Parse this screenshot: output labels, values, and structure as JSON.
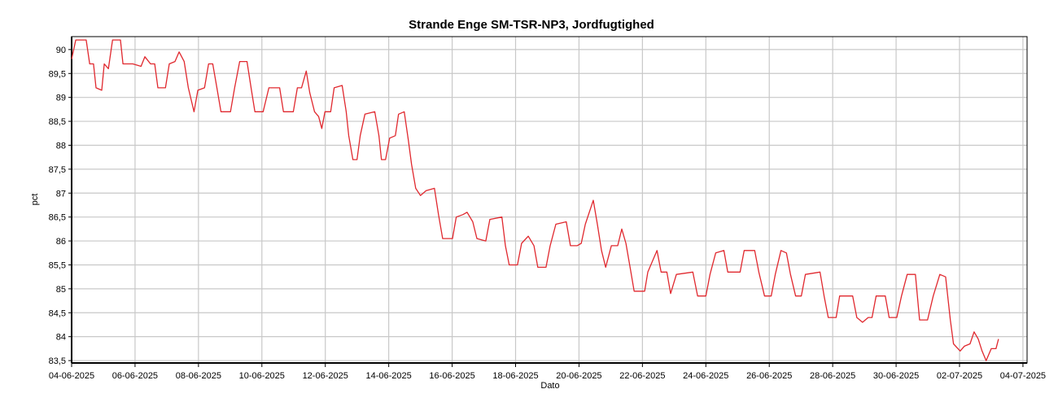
{
  "chart_data": {
    "type": "line",
    "title": "Strande Enge SM-TSR-NP3, Jordfugtighed",
    "x_label": "Dato",
    "y_label": "pct",
    "color": "#e0282e",
    "grid": true,
    "xlim": [
      0,
      30.13
    ],
    "ylim": [
      83.45,
      90.27
    ],
    "xticks": [
      {
        "value": 0,
        "label": "04-06-2025"
      },
      {
        "value": 2,
        "label": "06-06-2025"
      },
      {
        "value": 4,
        "label": "08-06-2025"
      },
      {
        "value": 6,
        "label": "10-06-2025"
      },
      {
        "value": 8,
        "label": "12-06-2025"
      },
      {
        "value": 10,
        "label": "14-06-2025"
      },
      {
        "value": 12,
        "label": "16-06-2025"
      },
      {
        "value": 14,
        "label": "18-06-2025"
      },
      {
        "value": 16,
        "label": "20-06-2025"
      },
      {
        "value": 18,
        "label": "22-06-2025"
      },
      {
        "value": 20,
        "label": "24-06-2025"
      },
      {
        "value": 22,
        "label": "26-06-2025"
      },
      {
        "value": 24,
        "label": "28-06-2025"
      },
      {
        "value": 26,
        "label": "30-06-2025"
      },
      {
        "value": 28,
        "label": "02-07-2025"
      },
      {
        "value": 30,
        "label": "04-07-2025"
      }
    ],
    "yticks": [
      {
        "value": 83.5,
        "label": "83,5"
      },
      84,
      {
        "value": 84.5,
        "label": "84,5"
      },
      85,
      {
        "value": 85.5,
        "label": "85,5"
      },
      86,
      {
        "value": 86.5,
        "label": "86,5"
      },
      87,
      {
        "value": 87.5,
        "label": "87,5"
      },
      88,
      {
        "value": 88.5,
        "label": "88,5"
      },
      89,
      {
        "value": 89.5,
        "label": "89,5"
      },
      90
    ],
    "x": [
      0,
      0.13,
      0.26,
      0.46,
      0.57,
      0.69,
      0.77,
      0.95,
      1.03,
      1.16,
      1.29,
      1.54,
      1.62,
      1.93,
      2.19,
      2.31,
      2.49,
      2.62,
      2.72,
      2.96,
      3.08,
      3.26,
      3.39,
      3.55,
      3.68,
      3.86,
      3.98,
      4.19,
      4.32,
      4.45,
      4.58,
      4.71,
      5.01,
      5.14,
      5.3,
      5.53,
      5.66,
      5.78,
      6.04,
      6.22,
      6.56,
      6.68,
      6.99,
      7.12,
      7.25,
      7.4,
      7.51,
      7.66,
      7.79,
      7.89,
      7.99,
      8.17,
      8.28,
      8.53,
      8.66,
      8.74,
      8.87,
      9.0,
      9.1,
      9.25,
      9.56,
      9.69,
      9.77,
      9.9,
      10.03,
      10.21,
      10.31,
      10.49,
      10.62,
      10.72,
      10.85,
      11.0,
      11.18,
      11.44,
      11.57,
      11.7,
      12.01,
      12.13,
      12.34,
      12.47,
      12.65,
      12.78,
      13.06,
      13.19,
      13.57,
      13.68,
      13.8,
      14.06,
      14.19,
      14.4,
      14.58,
      14.7,
      14.96,
      15.09,
      15.27,
      15.6,
      15.73,
      15.94,
      16.07,
      16.2,
      16.45,
      16.58,
      16.71,
      16.84,
      17.02,
      17.22,
      17.35,
      17.48,
      17.61,
      17.74,
      18.07,
      18.17,
      18.46,
      18.59,
      18.77,
      18.89,
      19.07,
      19.59,
      19.74,
      20.0,
      20.13,
      20.31,
      20.57,
      20.69,
      21.08,
      21.21,
      21.54,
      21.67,
      21.85,
      22.06,
      22.19,
      22.37,
      22.54,
      22.67,
      22.83,
      23.01,
      23.14,
      23.6,
      23.73,
      23.86,
      24.11,
      24.22,
      24.63,
      24.76,
      24.94,
      25.12,
      25.24,
      25.37,
      25.66,
      25.78,
      26.02,
      26.17,
      26.35,
      26.61,
      26.74,
      26.99,
      27.17,
      27.38,
      27.56,
      27.71,
      27.81,
      28.02,
      28.15,
      28.33,
      28.46,
      28.59,
      28.71,
      28.84,
      29.0,
      29.15,
      29.23
    ],
    "values": [
      89.8,
      90.2,
      90.2,
      90.2,
      89.7,
      89.7,
      89.2,
      89.15,
      89.7,
      89.6,
      90.2,
      90.2,
      89.7,
      89.7,
      89.65,
      89.85,
      89.7,
      89.7,
      89.2,
      89.2,
      89.7,
      89.75,
      89.95,
      89.75,
      89.2,
      88.7,
      89.15,
      89.2,
      89.7,
      89.7,
      89.2,
      88.7,
      88.7,
      89.2,
      89.75,
      89.75,
      89.2,
      88.7,
      88.7,
      89.2,
      89.2,
      88.7,
      88.7,
      89.2,
      89.2,
      89.55,
      89.1,
      88.7,
      88.6,
      88.35,
      88.7,
      88.7,
      89.2,
      89.25,
      88.7,
      88.2,
      87.7,
      87.7,
      88.2,
      88.65,
      88.7,
      88.2,
      87.7,
      87.7,
      88.15,
      88.2,
      88.65,
      88.7,
      88.1,
      87.6,
      87.1,
      86.95,
      87.05,
      87.1,
      86.55,
      86.05,
      86.05,
      86.5,
      86.55,
      86.6,
      86.4,
      86.05,
      86.0,
      86.45,
      86.5,
      85.9,
      85.5,
      85.5,
      85.95,
      86.1,
      85.9,
      85.45,
      85.45,
      85.9,
      86.35,
      86.4,
      85.9,
      85.9,
      85.95,
      86.35,
      86.85,
      86.35,
      85.8,
      85.45,
      85.9,
      85.9,
      86.25,
      85.95,
      85.45,
      84.95,
      84.95,
      85.35,
      85.8,
      85.35,
      85.35,
      84.9,
      85.3,
      85.35,
      84.85,
      84.85,
      85.3,
      85.75,
      85.8,
      85.35,
      85.35,
      85.8,
      85.8,
      85.35,
      84.85,
      84.85,
      85.3,
      85.8,
      85.75,
      85.3,
      84.85,
      84.85,
      85.3,
      85.35,
      84.85,
      84.4,
      84.4,
      84.85,
      84.85,
      84.4,
      84.3,
      84.4,
      84.4,
      84.85,
      84.85,
      84.4,
      84.4,
      84.85,
      85.3,
      85.3,
      84.35,
      84.35,
      84.85,
      85.3,
      85.25,
      84.35,
      83.85,
      83.7,
      83.8,
      83.85,
      84.1,
      83.95,
      83.7,
      83.5,
      83.75,
      83.75,
      83.95
    ]
  }
}
